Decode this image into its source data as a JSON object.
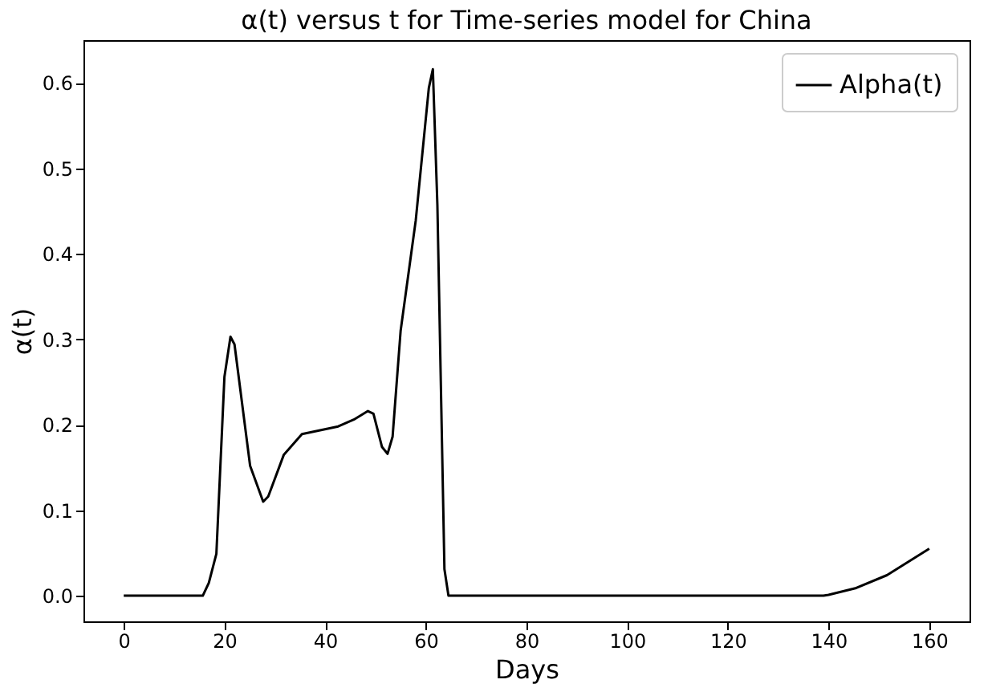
{
  "chart_data": {
    "type": "line",
    "title": "α(t) versus t for Time-series model for China",
    "xlabel": "Days",
    "ylabel": "α(t)",
    "xlim": [
      -8,
      168
    ],
    "ylim": [
      -0.03,
      0.65
    ],
    "xticks": [
      0,
      20,
      40,
      60,
      80,
      100,
      120,
      140,
      160
    ],
    "yticks": [
      {
        "value": 0,
        "label": "0.0"
      },
      0.1,
      0.2,
      0.3,
      0.4,
      0.5,
      0.6
    ],
    "grid": false,
    "legend": "top right",
    "marker": "none",
    "line_style": "solid",
    "series": [
      {
        "name": "Alpha(t)",
        "color": "#000000",
        "x": [
          0,
          15.7,
          16.9,
          18.4,
          20,
          21.2,
          22,
          25.1,
          27.7,
          28.7,
          31.8,
          35.4,
          42.6,
          45.7,
          48.5,
          49.6,
          51.3,
          52.4,
          53.4,
          55,
          58,
          60.6,
          61.4,
          62.3,
          63.7,
          64.5,
          100,
          139,
          140,
          145.5,
          151.6,
          160
        ],
        "values": [
          0,
          0,
          0.015,
          0.049,
          0.256,
          0.303,
          0.294,
          0.152,
          0.11,
          0.116,
          0.165,
          0.189,
          0.198,
          0.206,
          0.216,
          0.213,
          0.174,
          0.166,
          0.186,
          0.31,
          0.439,
          0.594,
          0.616,
          0.457,
          0.031,
          0,
          0,
          0,
          0.001,
          0.009,
          0.024,
          0.055
        ]
      }
    ]
  }
}
